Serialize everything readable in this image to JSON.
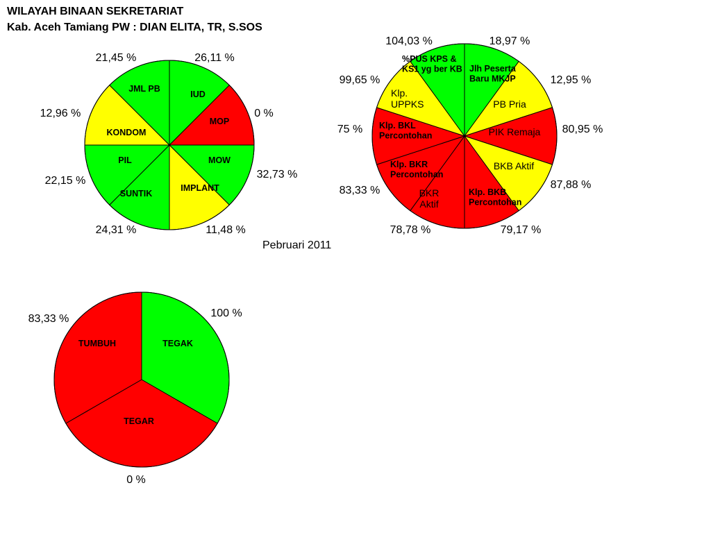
{
  "header": {
    "line1": "WILAYAH BINAAN SEKRETARIAT",
    "line2": "Kab. Aceh Tamiang   PW : DIAN ELITA, TR, S.SOS"
  },
  "period_label": "Pebruari  2011",
  "colors": {
    "green": "#00ff00",
    "yellow": "#ffff00",
    "red": "#ff0000",
    "outline": "#000000"
  },
  "chart_data": [
    {
      "type": "pie",
      "title": "",
      "slices": [
        {
          "label": "IUD",
          "value": 1,
          "percent_label": "26,11 %",
          "color": "green"
        },
        {
          "label": "MOP",
          "value": 1,
          "percent_label": "0 %",
          "color": "red"
        },
        {
          "label": "MOW",
          "value": 1,
          "percent_label": "32,73 %",
          "color": "green"
        },
        {
          "label": "IMPLANT",
          "value": 1,
          "percent_label": "11,48 %",
          "color": "yellow"
        },
        {
          "label": "SUNTIK",
          "value": 1,
          "percent_label": "24,31 %",
          "color": "green"
        },
        {
          "label": "PIL",
          "value": 1,
          "percent_label": "22,15 %",
          "color": "green"
        },
        {
          "label": "KONDOM",
          "value": 1,
          "percent_label": "12,96 %",
          "color": "yellow"
        },
        {
          "label": "JML PB",
          "value": 1,
          "percent_label": "21,45 %",
          "color": "green"
        }
      ]
    },
    {
      "type": "pie",
      "title": "",
      "slices": [
        {
          "label": "Jlh Peserta Baru MKJP",
          "value": 1,
          "percent_label": "18,97 %",
          "color": "green"
        },
        {
          "label": "PB Pria",
          "value": 1,
          "percent_label": "12,95 %",
          "color": "yellow"
        },
        {
          "label": "PIK Remaja",
          "value": 1,
          "percent_label": "80,95 %",
          "color": "red"
        },
        {
          "label": "BKB Aktif",
          "value": 1,
          "percent_label": "87,88 %",
          "color": "yellow"
        },
        {
          "label": "Klp. BKB Percontohan",
          "value": 1,
          "percent_label": "79,17 %",
          "color": "red"
        },
        {
          "label": "BKR Aktif",
          "value": 1,
          "percent_label": "78,78 %",
          "color": "red"
        },
        {
          "label": "Klp. BKR Percontohan",
          "value": 1,
          "percent_label": "83,33 %",
          "color": "red"
        },
        {
          "label": "Klp. BKL Percontohan",
          "value": 1,
          "percent_label": "75 %",
          "color": "red"
        },
        {
          "label": "Klp. UPPKS",
          "value": 1,
          "percent_label": "99,65 %",
          "color": "yellow"
        },
        {
          "label": "%PUS KPS & KS1 yg ber KB",
          "value": 1,
          "percent_label": "104,03 %",
          "color": "green"
        }
      ]
    },
    {
      "type": "pie",
      "title": "",
      "slices": [
        {
          "label": "TEGAK",
          "value": 1,
          "percent_label": "100 %",
          "color": "green"
        },
        {
          "label": "TEGAR",
          "value": 1,
          "percent_label": "0 %",
          "color": "red"
        },
        {
          "label": "TUMBUH",
          "value": 1,
          "percent_label": "83,33 %",
          "color": "red"
        }
      ]
    }
  ]
}
